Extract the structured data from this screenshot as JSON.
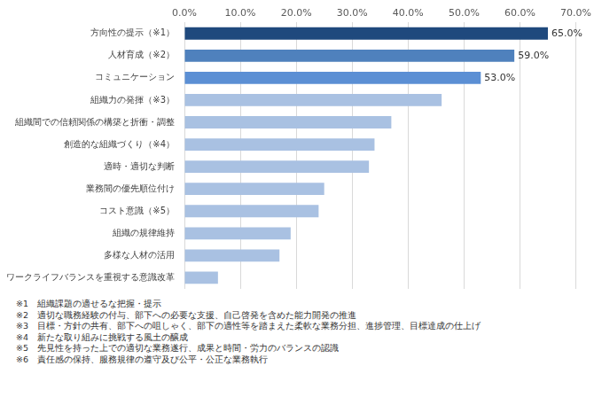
{
  "chart_data": {
    "type": "bar",
    "orientation": "horizontal",
    "categories": [
      "方向性の提示（※1）",
      "人材育成（※2）",
      "コミュニケーション",
      "組織力の発揮（※3）",
      "組織間での信頼関係の構築と折衝・調整",
      "創造的な組織づくり（※4）",
      "適時・適切な判断",
      "業務間の優先順位付け",
      "コスト意識（※5）",
      "組織の規律維持",
      "多様な人材の活用",
      "ワークライフバランスを重視する意識改革"
    ],
    "values": [
      65.0,
      59.0,
      53.0,
      46,
      37,
      34,
      33,
      25,
      24,
      19,
      17,
      6
    ],
    "value_labels": [
      "65.0%",
      "59.0%",
      "53.0%",
      null,
      null,
      null,
      null,
      null,
      null,
      null,
      null,
      null
    ],
    "data_labels": true,
    "colors": [
      "#1f497d",
      "#4f81bd",
      "#5b8fd4",
      "#a9c1e2",
      "#a9c1e2",
      "#a9c1e2",
      "#a9c1e2",
      "#a9c1e2",
      "#a9c1e2",
      "#a9c1e2",
      "#a9c1e2",
      "#a9c1e2"
    ],
    "xlim": [
      0,
      70
    ],
    "xticks": [
      {
        "value": 0,
        "label": "0.0%"
      },
      {
        "value": 10,
        "label": "10.0%"
      },
      {
        "value": 20,
        "label": "20.0%"
      },
      {
        "value": 30,
        "label": "30.0%"
      },
      {
        "value": 40,
        "label": "40.0%"
      },
      {
        "value": 50,
        "label": "50.0%"
      },
      {
        "value": 60,
        "label": "60.0%"
      },
      {
        "value": 70,
        "label": "70.0%"
      }
    ],
    "grid": true,
    "annotations": [
      "※1　組織課題の適せるな把握・提示",
      "※2　適切な職務経験の付与、部下への必要な支援、自己啓発を含めた能力開発の推進",
      "※3　目標・方針の共有、部下への咀しゃく、部下の適性等を踏まえた柔軟な業務分担、進捗管理、目標達成の仕上げ",
      "※4　新たな取り組みに挑戦する風土の醸成",
      "※5　先見性を持った上での適切な業務遂行、成果と時間・労力のバランスの認識",
      "※6　責任感の保持、服務規律の遵守及び公平・公正な業務執行"
    ]
  }
}
